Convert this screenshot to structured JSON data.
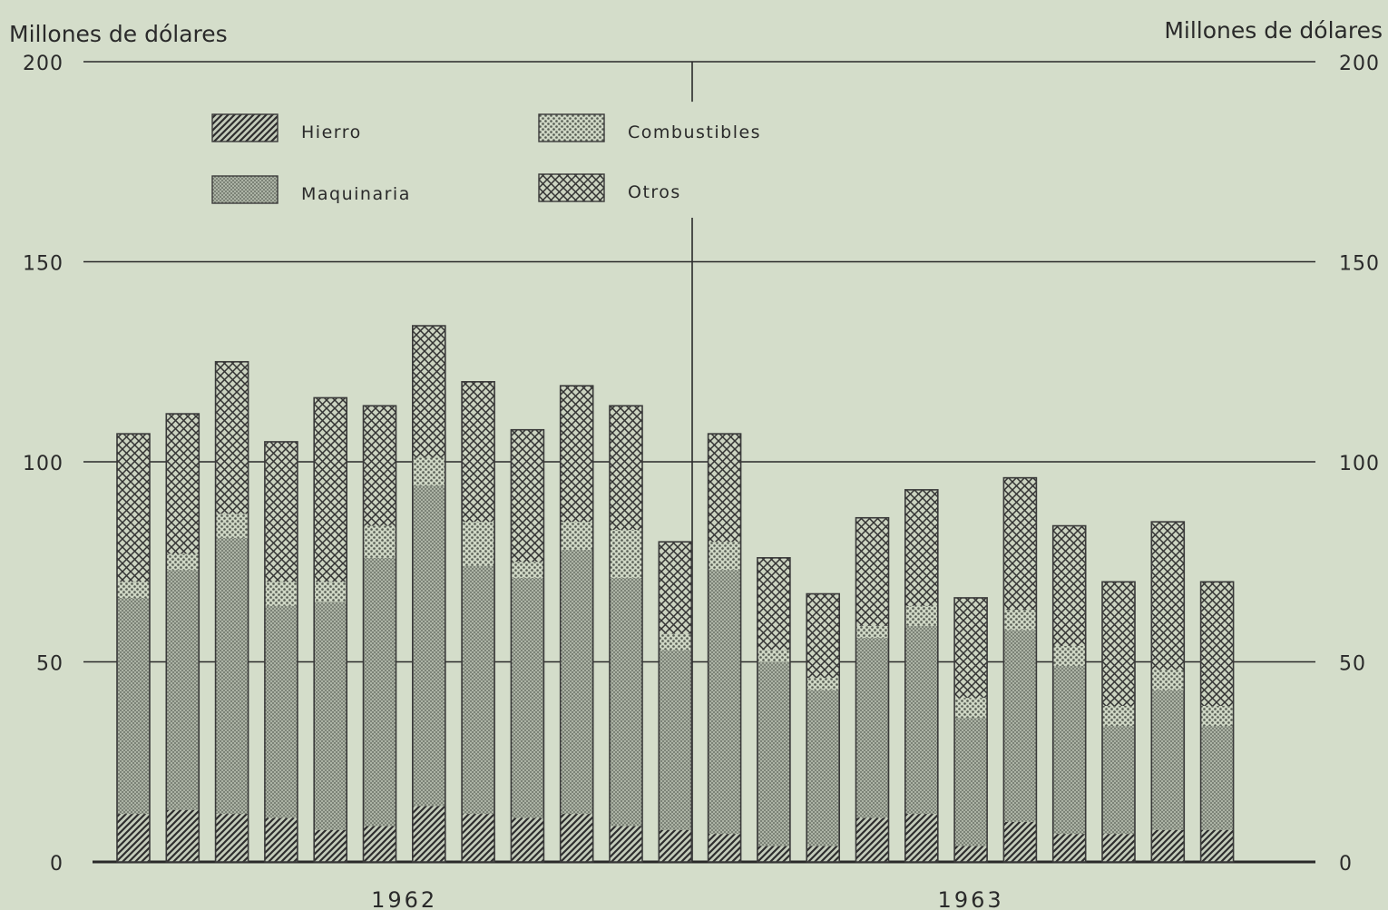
{
  "chart_data": {
    "type": "bar",
    "stacked": true,
    "ylabel_left": "Millones de dólares",
    "ylabel_right": "Millones de dólares",
    "ylim": [
      0,
      200
    ],
    "yticks": [
      0,
      50,
      100,
      150,
      200
    ],
    "grid": true,
    "legend_position": "top-left",
    "groups": [
      {
        "label": "1962",
        "count": 12
      },
      {
        "label": "1963",
        "count": 11
      }
    ],
    "series": [
      {
        "name": "Hierro",
        "values": [
          12,
          13,
          12,
          11,
          8,
          9,
          14,
          12,
          11,
          12,
          9,
          8,
          7,
          4,
          4,
          11,
          12,
          4,
          10,
          7,
          7,
          8,
          8
        ]
      },
      {
        "name": "Maquinaria",
        "values": [
          54,
          60,
          69,
          53,
          57,
          67,
          80,
          62,
          60,
          66,
          62,
          45,
          66,
          46,
          39,
          45,
          47,
          32,
          48,
          42,
          27,
          35,
          26
        ]
      },
      {
        "name": "Combustibles",
        "values": [
          4,
          4,
          6,
          6,
          5,
          8,
          7,
          11,
          4,
          7,
          12,
          4,
          7,
          3,
          3,
          3,
          5,
          5,
          5,
          5,
          5,
          5,
          5
        ]
      },
      {
        "name": "Otros",
        "values": [
          37,
          35,
          38,
          35,
          46,
          30,
          33,
          35,
          33,
          34,
          31,
          23,
          27,
          23,
          21,
          27,
          29,
          25,
          33,
          30,
          31,
          37,
          31
        ]
      }
    ],
    "patterns": {
      "Hierro": "diagonal-hatch",
      "Maquinaria": "dense-dots",
      "Combustibles": "light-dots",
      "Otros": "crosshatch"
    }
  }
}
